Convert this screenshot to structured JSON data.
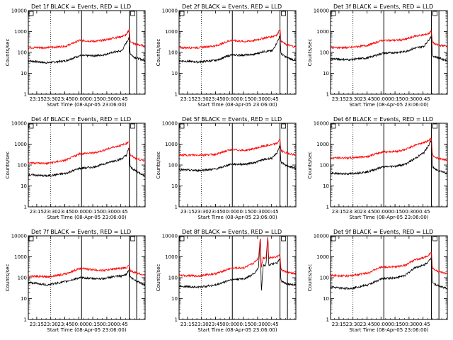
{
  "figure": {
    "ylabel": "Counts/sec",
    "xlabel": "Start Time (08-Apr-05 23:06:00)",
    "colors": {
      "events": "#000000",
      "lld": "#ff0000",
      "axis": "#000000"
    },
    "xticks": [
      "23:15",
      "23:30",
      "23:45",
      "00:00",
      "00:15",
      "00:30",
      "00:45"
    ],
    "yticks": [
      "1",
      "10",
      "100",
      "1000",
      "10000"
    ]
  },
  "chart_data": [
    {
      "type": "line",
      "title": "Det 1f BLACK = Events, RED = LLD",
      "x_minutes": [
        0,
        20,
        40,
        55,
        70,
        80,
        90,
        100,
        105,
        108,
        109,
        113,
        116,
        125
      ],
      "series": [
        {
          "name": "Events",
          "color": "#000000",
          "values": [
            40,
            32,
            40,
            70,
            70,
            75,
            100,
            120,
            300,
            500,
            90,
            60,
            55,
            40
          ]
        },
        {
          "name": "LLD",
          "color": "#ff0000",
          "values": [
            170,
            170,
            200,
            380,
            340,
            380,
            480,
            580,
            700,
            1300,
            350,
            260,
            240,
            200
          ]
        }
      ]
    },
    {
      "type": "line",
      "title": "Det 2f BLACK = Events, RED = LLD",
      "x_minutes": [
        0,
        20,
        40,
        55,
        70,
        80,
        90,
        100,
        105,
        108,
        109,
        113,
        116,
        125
      ],
      "series": [
        {
          "name": "Events",
          "color": "#000000",
          "values": [
            40,
            35,
            42,
            75,
            75,
            80,
            110,
            120,
            320,
            600,
            90,
            65,
            55,
            40
          ]
        },
        {
          "name": "LLD",
          "color": "#ff0000",
          "values": [
            170,
            170,
            210,
            380,
            330,
            370,
            480,
            580,
            700,
            1400,
            360,
            260,
            230,
            180
          ]
        }
      ]
    },
    {
      "type": "line",
      "title": "Det 3f BLACK = Events, RED = LLD",
      "x_minutes": [
        0,
        20,
        40,
        55,
        70,
        80,
        90,
        100,
        105,
        108,
        109,
        113,
        116,
        125
      ],
      "series": [
        {
          "name": "Events",
          "color": "#000000",
          "values": [
            50,
            45,
            55,
            90,
            100,
            110,
            160,
            200,
            400,
            600,
            70,
            60,
            55,
            40
          ]
        },
        {
          "name": "LLD",
          "color": "#ff0000",
          "values": [
            170,
            170,
            220,
            380,
            380,
            420,
            600,
            700,
            800,
            1100,
            300,
            240,
            220,
            200
          ]
        }
      ]
    },
    {
      "type": "line",
      "title": "Det 4f BLACK = Events, RED = LLD",
      "x_minutes": [
        0,
        20,
        40,
        55,
        70,
        80,
        90,
        100,
        105,
        108,
        109,
        113,
        116,
        125
      ],
      "series": [
        {
          "name": "Events",
          "color": "#000000",
          "values": [
            35,
            30,
            40,
            70,
            80,
            110,
            150,
            200,
            300,
            700,
            80,
            60,
            50,
            30
          ]
        },
        {
          "name": "LLD",
          "color": "#ff0000",
          "values": [
            130,
            120,
            170,
            350,
            380,
            500,
            700,
            900,
            1100,
            1400,
            300,
            230,
            200,
            160
          ]
        }
      ]
    },
    {
      "type": "line",
      "title": "Det 5f BLACK = Events, RED = LLD",
      "x_minutes": [
        0,
        20,
        40,
        55,
        70,
        80,
        90,
        100,
        105,
        108,
        109,
        113,
        116,
        125
      ],
      "series": [
        {
          "name": "Events",
          "color": "#000000",
          "values": [
            60,
            55,
            65,
            110,
            110,
            130,
            180,
            220,
            400,
            900,
            140,
            100,
            90,
            70
          ]
        },
        {
          "name": "LLD",
          "color": "#ff0000",
          "values": [
            300,
            300,
            330,
            550,
            500,
            600,
            800,
            950,
            1100,
            1800,
            500,
            400,
            380,
            300
          ]
        }
      ]
    },
    {
      "type": "line",
      "title": "Det 6f BLACK = Events, RED = LLD",
      "x_minutes": [
        0,
        20,
        40,
        55,
        70,
        80,
        90,
        100,
        105,
        108,
        109,
        113,
        116,
        125
      ],
      "series": [
        {
          "name": "Events",
          "color": "#000000",
          "values": [
            40,
            38,
            48,
            80,
            90,
            110,
            200,
            400,
            900,
            1500,
            80,
            60,
            55,
            40
          ]
        },
        {
          "name": "LLD",
          "color": "#ff0000",
          "values": [
            220,
            220,
            260,
            420,
            450,
            550,
            900,
            1200,
            1500,
            2000,
            300,
            230,
            200,
            170
          ]
        }
      ]
    },
    {
      "type": "line",
      "title": "Det 7f BLACK = Events, RED = LLD",
      "x_minutes": [
        0,
        20,
        40,
        55,
        70,
        80,
        90,
        100,
        105,
        108,
        109,
        113,
        116,
        125
      ],
      "series": [
        {
          "name": "Events",
          "color": "#000000",
          "values": [
            60,
            45,
            65,
            100,
            90,
            90,
            110,
            120,
            150,
            250,
            110,
            80,
            70,
            45
          ]
        },
        {
          "name": "LLD",
          "color": "#ff0000",
          "values": [
            120,
            110,
            150,
            280,
            240,
            220,
            260,
            280,
            300,
            400,
            220,
            180,
            170,
            130
          ]
        }
      ]
    },
    {
      "type": "line",
      "title": "Det 8f BLACK = Events, RED = LLD",
      "x_minutes": [
        0,
        20,
        40,
        55,
        70,
        80,
        85,
        87,
        88,
        90,
        93,
        95,
        96,
        100,
        105,
        108,
        109,
        113,
        116,
        125
      ],
      "series": [
        {
          "name": "Events",
          "color": "#000000",
          "values": [
            40,
            35,
            45,
            80,
            90,
            150,
            300,
            10000,
            20,
            400,
            400,
            10000,
            400,
            450,
            500,
            800,
            70,
            55,
            50,
            45
          ]
        },
        {
          "name": "LLD",
          "color": "#ff0000",
          "values": [
            130,
            120,
            160,
            280,
            300,
            500,
            900,
            10000,
            300,
            900,
            900,
            10000,
            900,
            950,
            1000,
            1300,
            250,
            200,
            180,
            150
          ]
        }
      ]
    },
    {
      "type": "line",
      "title": "Det 9f BLACK = Events, RED = LLD",
      "x_minutes": [
        0,
        20,
        40,
        55,
        70,
        80,
        90,
        100,
        105,
        108,
        109,
        113,
        116,
        125
      ],
      "series": [
        {
          "name": "Events",
          "color": "#000000",
          "values": [
            35,
            30,
            45,
            90,
            100,
            130,
            300,
            400,
            600,
            900,
            60,
            45,
            40,
            30
          ]
        },
        {
          "name": "LLD",
          "color": "#ff0000",
          "values": [
            130,
            120,
            170,
            330,
            330,
            400,
            700,
            900,
            1200,
            1800,
            280,
            220,
            190,
            150
          ]
        }
      ]
    }
  ]
}
